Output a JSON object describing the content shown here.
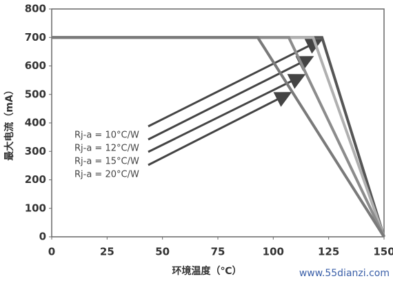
{
  "chart_data": {
    "type": "line",
    "xlabel": "环境温度（℃）",
    "ylabel": "最大电流（mA）",
    "xlim": [
      0,
      150
    ],
    "xticks": [
      0,
      25,
      50,
      75,
      100,
      125,
      150
    ],
    "ylim": [
      0,
      800
    ],
    "yticks": [
      0,
      100,
      200,
      300,
      400,
      500,
      600,
      700,
      800
    ],
    "grid": false,
    "series": [
      {
        "name": "Rj-a = 10°C/W",
        "color": "#555555",
        "x": [
          0,
          122,
          150
        ],
        "values": [
          700,
          700,
          0
        ]
      },
      {
        "name": "Rj-a = 12°C/W",
        "color": "#b0b0b0",
        "x": [
          0,
          118,
          150
        ],
        "values": [
          700,
          700,
          0
        ]
      },
      {
        "name": "Rj-a = 15°C/W",
        "color": "#8c8c8c",
        "x": [
          0,
          107,
          150
        ],
        "values": [
          700,
          700,
          0
        ]
      },
      {
        "name": "Rj-a = 20°C/W",
        "color": "#7a7a7a",
        "x": [
          0,
          93,
          150
        ],
        "values": [
          700,
          700,
          0
        ]
      }
    ],
    "watermark": "www.55dianzi.com"
  }
}
